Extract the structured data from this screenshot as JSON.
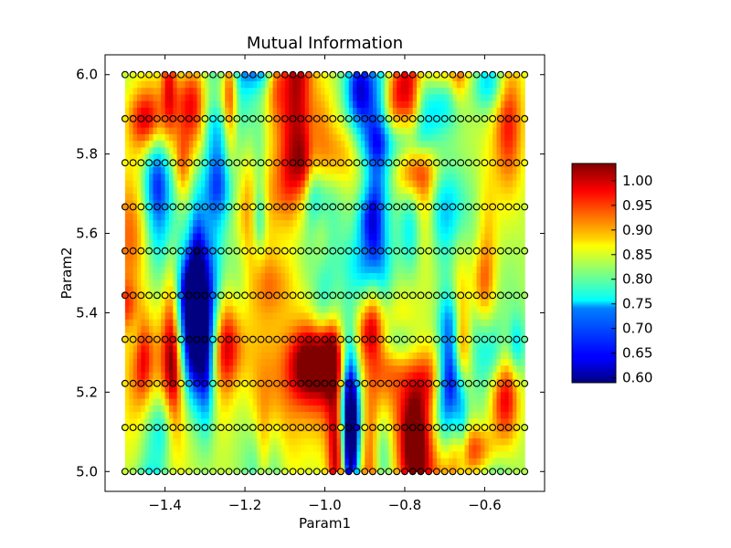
{
  "chart_data": {
    "type": "heatmap",
    "title": "Mutual Information",
    "xlabel": "Param1",
    "ylabel": "Param2",
    "xlim": [
      -1.55,
      -0.45
    ],
    "ylim": [
      4.95,
      6.05
    ],
    "xticks": [
      -1.4,
      -1.2,
      -1.0,
      -0.8,
      -0.6
    ],
    "xtick_labels": [
      "−1.4",
      "−1.2",
      "−1.0",
      "−0.8",
      "−0.6"
    ],
    "yticks": [
      5.0,
      5.2,
      5.4,
      5.6,
      5.8,
      6.0
    ],
    "ytick_labels": [
      "5.0",
      "5.2",
      "5.4",
      "5.6",
      "5.8",
      "6.0"
    ],
    "colorbar": {
      "colormap": "jet",
      "vmin": 0.59,
      "vmax": 1.035,
      "ticks": [
        0.6,
        0.65,
        0.7,
        0.75,
        0.8,
        0.85,
        0.9,
        0.95,
        1.0
      ],
      "tick_labels": [
        "0.60",
        "0.65",
        "0.70",
        "0.75",
        "0.80",
        "0.85",
        "0.90",
        "0.95",
        "1.00"
      ]
    },
    "grid": false,
    "sample_points": {
      "x_start": -1.5,
      "x_end": -0.5,
      "x_count": 51,
      "y_values": [
        5.0,
        5.111,
        5.222,
        5.333,
        5.444,
        5.556,
        5.667,
        5.778,
        5.889,
        6.0
      ],
      "marker": "circle",
      "marker_edge": "#000000"
    }
  }
}
